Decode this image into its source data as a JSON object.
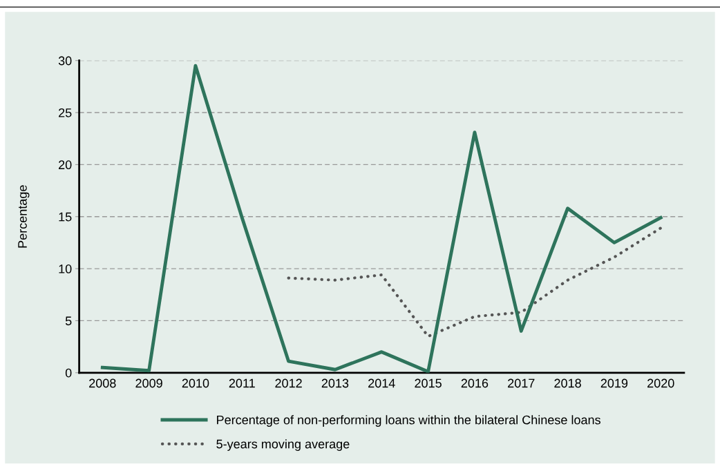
{
  "chart_data": {
    "type": "line",
    "ylabel": "Percentage",
    "categories": [
      "2008",
      "2009",
      "2010",
      "2011",
      "2012",
      "2013",
      "2014",
      "2015",
      "2016",
      "2017",
      "2018",
      "2019",
      "2020"
    ],
    "series": [
      {
        "name": "Percentage of non-performing loans within the bilateral Chinese loans",
        "color": "#2e745c",
        "line_style": "solid",
        "values": [
          0.5,
          0.2,
          29.5,
          14.9,
          1.1,
          0.3,
          2.0,
          0.1,
          23.1,
          4.0,
          15.8,
          12.5,
          14.9
        ]
      },
      {
        "name": "5-years moving average",
        "color": "#555555",
        "line_style": "dotted",
        "values": [
          null,
          null,
          null,
          null,
          9.1,
          8.9,
          9.4,
          3.5,
          5.4,
          5.8,
          8.9,
          11.1,
          13.9
        ]
      }
    ],
    "ylim": [
      0,
      30
    ],
    "yticks": [
      0,
      5,
      10,
      15,
      20,
      25,
      30
    ],
    "grid": "y",
    "legend": "bottom",
    "marker": "none"
  }
}
